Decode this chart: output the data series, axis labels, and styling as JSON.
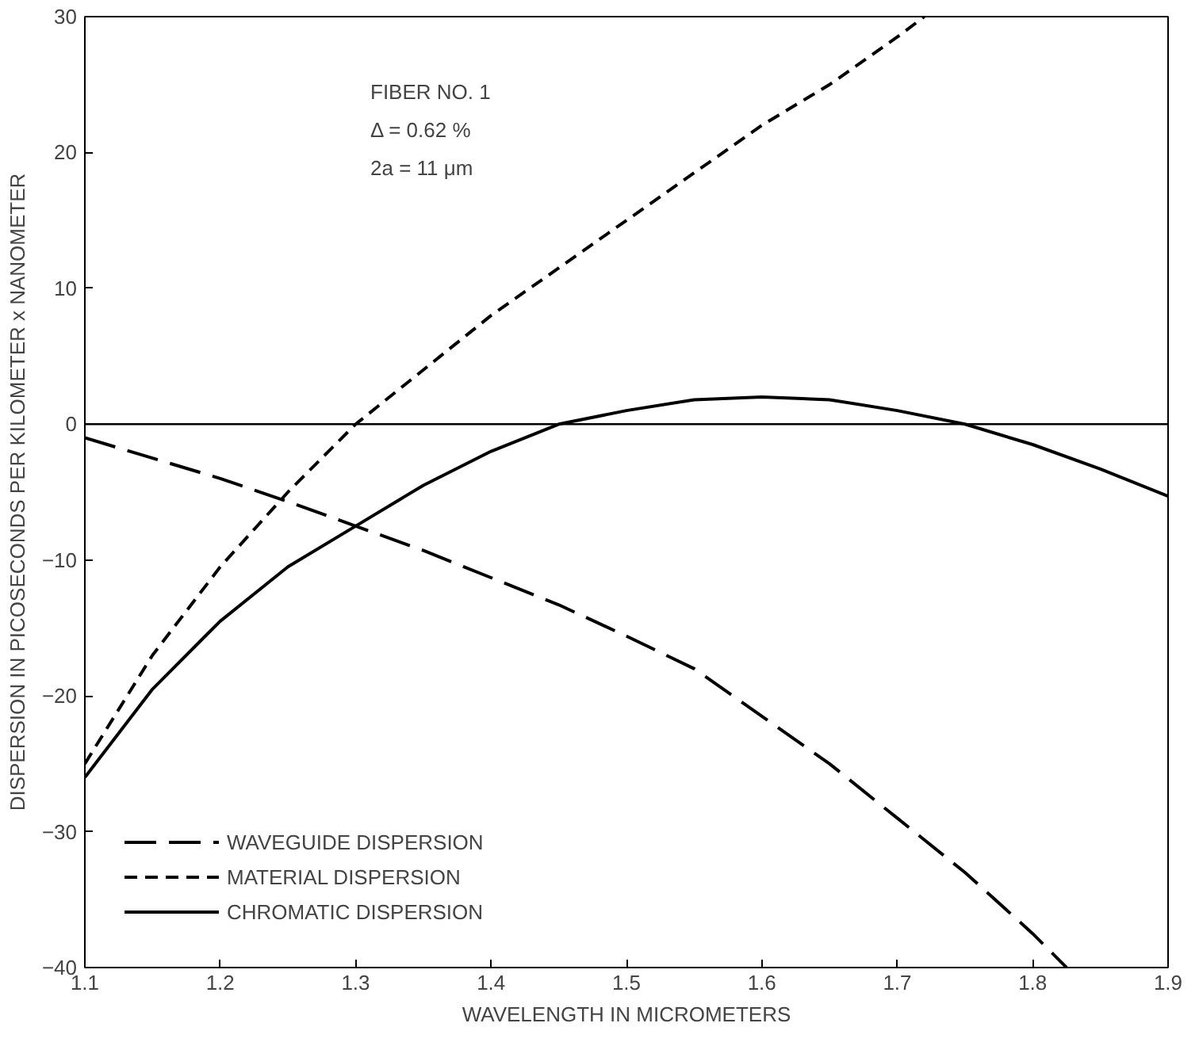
{
  "chart_data": {
    "type": "line",
    "xlabel": "WAVELENGTH IN MICROMETERS",
    "ylabel": "DISPERSION IN PICOSECONDS PER KILOMETER x NANOMETER",
    "xlim": [
      1.1,
      1.9
    ],
    "xticks": [
      1.1,
      1.2,
      1.3,
      1.4,
      1.5,
      1.6,
      1.7,
      1.8,
      1.9
    ],
    "ylim": [
      -40,
      30
    ],
    "yticks": [
      -40,
      -30,
      -20,
      -10,
      0,
      10,
      20,
      30
    ],
    "grid": false,
    "legend": "bottom left",
    "marker": "none",
    "annotations": [
      "FIBER NO. 1",
      "Δ = 0.62 %",
      "2a = 11 μm"
    ],
    "ref_lines": [
      {
        "axis": "y",
        "value": 0,
        "label": null,
        "color": "#000000"
      }
    ],
    "series": [
      {
        "name": "WAVEGUIDE DISPERSION",
        "color": "#000000",
        "line_style": "longdash",
        "x": [
          1.1,
          1.15,
          1.2,
          1.25,
          1.3,
          1.35,
          1.4,
          1.45,
          1.5,
          1.55,
          1.6,
          1.65,
          1.7,
          1.75,
          1.8,
          1.825
        ],
        "values": [
          -1,
          -2.5,
          -4,
          -5.7,
          -7.5,
          -9.3,
          -11.3,
          -13.3,
          -15.6,
          -18,
          -21.5,
          -25,
          -29,
          -33,
          -37.5,
          -40
        ]
      },
      {
        "name": "MATERIAL DISPERSION",
        "color": "#000000",
        "line_style": "dashed",
        "x": [
          1.1,
          1.15,
          1.2,
          1.25,
          1.3,
          1.35,
          1.4,
          1.45,
          1.5,
          1.55,
          1.6,
          1.65,
          1.7,
          1.72
        ],
        "values": [
          -25,
          -17,
          -10.5,
          -5,
          0,
          4,
          8,
          11.5,
          15,
          18.5,
          22,
          25,
          28.5,
          30
        ]
      },
      {
        "name": "CHROMATIC DISPERSION",
        "color": "#000000",
        "line_style": "solid",
        "x": [
          1.1,
          1.15,
          1.2,
          1.25,
          1.3,
          1.35,
          1.4,
          1.45,
          1.5,
          1.55,
          1.6,
          1.65,
          1.7,
          1.75,
          1.8,
          1.85,
          1.9
        ],
        "values": [
          -26,
          -19.5,
          -14.5,
          -10.5,
          -7.5,
          -4.5,
          -2,
          0,
          1,
          1.8,
          2,
          1.8,
          1,
          0,
          -1.5,
          -3.3,
          -5.3
        ]
      }
    ]
  }
}
